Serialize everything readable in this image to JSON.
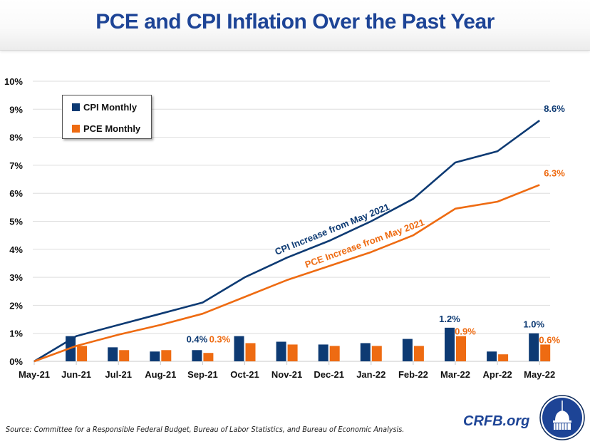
{
  "title": "PCE and CPI Inflation Over the Past Year",
  "legend": [
    {
      "label": "CPI Monthly",
      "color": "#0d3a73"
    },
    {
      "label": "PCE Monthly",
      "color": "#ee6b12"
    }
  ],
  "source": "Source: Committee for a Responsible Federal Budget, Bureau of Labor Statistics, and Bureau of Economic Analysis.",
  "brand": "CRFB.org",
  "logo_icon": "capitol-dome-icon",
  "chart_data": {
    "type": "bar+line",
    "title": "PCE and CPI Inflation Over the Past Year",
    "xlabel": "",
    "ylabel": "",
    "ylim": [
      0,
      10
    ],
    "yticks": [
      "0%",
      "1%",
      "2%",
      "3%",
      "4%",
      "5%",
      "6%",
      "7%",
      "8%",
      "9%",
      "10%"
    ],
    "grid": true,
    "legend_position": "top-left",
    "categories": [
      "May-21",
      "Jun-21",
      "Jul-21",
      "Aug-21",
      "Sep-21",
      "Oct-21",
      "Nov-21",
      "Dec-21",
      "Jan-22",
      "Feb-22",
      "Mar-22",
      "Apr-22",
      "May-22"
    ],
    "colors": {
      "cpi": "#0d3a73",
      "pce": "#ee6b12"
    },
    "bar_series": [
      {
        "name": "CPI Monthly",
        "values": [
          null,
          0.9,
          0.5,
          0.35,
          0.4,
          0.9,
          0.7,
          0.6,
          0.65,
          0.8,
          1.2,
          0.35,
          1.0
        ]
      },
      {
        "name": "PCE Monthly",
        "values": [
          null,
          0.55,
          0.4,
          0.4,
          0.3,
          0.65,
          0.6,
          0.55,
          0.55,
          0.55,
          0.9,
          0.25,
          0.6
        ]
      }
    ],
    "line_series": [
      {
        "name": "CPI Increase from May 2021",
        "values": [
          0,
          0.9,
          1.3,
          1.7,
          2.1,
          3.0,
          3.7,
          4.3,
          5.0,
          5.8,
          7.1,
          7.5,
          8.6
        ]
      },
      {
        "name": "PCE Increase from May 2021",
        "values": [
          0,
          0.55,
          0.95,
          1.3,
          1.7,
          2.3,
          2.9,
          3.4,
          3.9,
          4.5,
          5.45,
          5.7,
          6.3
        ]
      }
    ],
    "annotations": [
      {
        "text": "0.4%",
        "series": "cpi-bar",
        "category": "Sep-21"
      },
      {
        "text": "0.3%",
        "series": "pce-bar",
        "category": "Sep-21"
      },
      {
        "text": "1.2%",
        "series": "cpi-bar",
        "category": "Mar-22"
      },
      {
        "text": "0.9%",
        "series": "pce-bar",
        "category": "Mar-22"
      },
      {
        "text": "1.0%",
        "series": "cpi-bar",
        "category": "May-22"
      },
      {
        "text": "0.6%",
        "series": "pce-bar",
        "category": "May-22"
      },
      {
        "text": "8.6%",
        "series": "cpi-line",
        "category": "May-22"
      },
      {
        "text": "6.3%",
        "series": "pce-line",
        "category": "May-22"
      }
    ],
    "line_labels": [
      "CPI Increase from May 2021",
      "PCE Increase from May 2021"
    ]
  }
}
